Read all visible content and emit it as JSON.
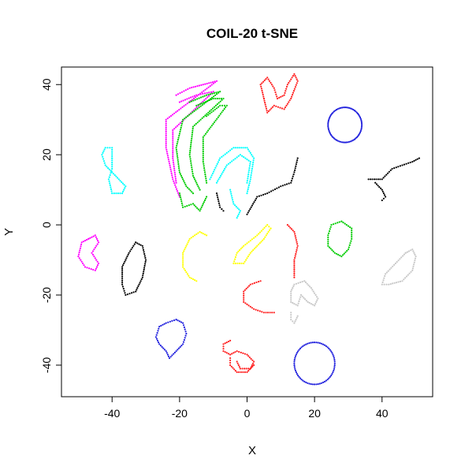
{
  "chart_data": {
    "type": "scatter",
    "title": "COIL-20 t-SNE",
    "xlabel": "X",
    "ylabel": "Y",
    "xlim": [
      -55,
      55
    ],
    "ylim": [
      -49,
      45
    ],
    "xticks": [
      -40,
      -20,
      0,
      20,
      40
    ],
    "yticks": [
      -40,
      -20,
      0,
      20,
      40
    ],
    "grid": false,
    "legend": "none",
    "marker": "small-dot",
    "series": [
      {
        "color": "#ff00ff",
        "shape": "polyline",
        "points": [
          [
            -21,
            37
          ],
          [
            -17,
            39
          ],
          [
            -13,
            40
          ],
          [
            -9,
            41
          ],
          [
            -24,
            30
          ],
          [
            -24,
            22
          ],
          [
            -22,
            13
          ],
          [
            -20,
            8
          ]
        ]
      },
      {
        "color": "#ff00ff",
        "shape": "polyline",
        "points": [
          [
            -20,
            35
          ],
          [
            -15,
            37
          ],
          [
            -10,
            38
          ],
          [
            -22,
            27
          ],
          [
            -22,
            19
          ],
          [
            -21,
            12
          ]
        ]
      },
      {
        "color": "#00cc00",
        "shape": "polyline",
        "points": [
          [
            -17,
            35
          ],
          [
            -12,
            37
          ],
          [
            -8,
            38
          ],
          [
            -19,
            30
          ],
          [
            -21,
            22
          ],
          [
            -20,
            15
          ],
          [
            -18,
            11
          ],
          [
            -16,
            9
          ]
        ]
      },
      {
        "color": "#00cc00",
        "shape": "polyline",
        "points": [
          [
            -15,
            34
          ],
          [
            -10,
            36
          ],
          [
            -7,
            36
          ],
          [
            -16,
            28
          ],
          [
            -17,
            20
          ],
          [
            -16,
            14
          ],
          [
            -14,
            10
          ]
        ]
      },
      {
        "color": "#00cc00",
        "shape": "polyline",
        "points": [
          [
            -12,
            31
          ],
          [
            -8,
            34
          ],
          [
            -6,
            34
          ],
          [
            -13,
            25
          ],
          [
            -13,
            18
          ],
          [
            -12,
            12
          ]
        ]
      },
      {
        "color": "#00cc00",
        "shape": "polyline",
        "points": [
          [
            -20,
            9
          ],
          [
            -19,
            5
          ],
          [
            -16,
            6
          ],
          [
            -14,
            4
          ],
          [
            -12,
            8
          ]
        ]
      },
      {
        "color": "#00ffff",
        "shape": "polyline",
        "points": [
          [
            -11,
            13
          ],
          [
            -8,
            19
          ],
          [
            -4,
            22
          ],
          [
            0,
            22
          ],
          [
            2,
            19
          ],
          [
            1,
            13
          ],
          [
            0,
            9
          ]
        ]
      },
      {
        "color": "#00ffff",
        "shape": "polyline",
        "points": [
          [
            -9,
            12
          ],
          [
            -6,
            17
          ],
          [
            -2,
            20
          ],
          [
            1,
            18
          ],
          [
            0,
            12
          ]
        ]
      },
      {
        "color": "#00ffff",
        "shape": "polyline",
        "points": [
          [
            -5,
            10
          ],
          [
            -4,
            6
          ],
          [
            -2,
            4
          ],
          [
            -3,
            2
          ]
        ]
      },
      {
        "color": "#00ffff",
        "shape": "polyline",
        "points": [
          [
            -40,
            19
          ],
          [
            -40,
            22
          ],
          [
            -42,
            22
          ],
          [
            -43,
            20
          ],
          [
            -42,
            17
          ],
          [
            -40,
            15
          ],
          [
            -38,
            13
          ],
          [
            -36,
            11
          ],
          [
            -37,
            9
          ],
          [
            -40,
            9
          ],
          [
            -41,
            13
          ],
          [
            -40,
            16
          ],
          [
            -40,
            19
          ]
        ]
      },
      {
        "color": "#ff2020",
        "shape": "polyline",
        "points": [
          [
            5,
            36
          ],
          [
            4,
            40
          ],
          [
            6,
            42
          ],
          [
            8,
            39
          ],
          [
            9,
            36
          ],
          [
            11,
            37
          ],
          [
            12,
            40
          ],
          [
            14,
            43
          ],
          [
            15,
            41
          ],
          [
            13,
            36
          ],
          [
            11,
            33
          ],
          [
            8,
            34
          ],
          [
            6,
            32
          ],
          [
            5,
            36
          ]
        ]
      },
      {
        "color": "#2020dd",
        "shape": "ellipse",
        "cx": 29,
        "cy": 28.5,
        "rx": 5,
        "ry": 5
      },
      {
        "color": "#000000",
        "shape": "polyline",
        "points": [
          [
            0,
            3
          ],
          [
            3,
            8
          ],
          [
            6,
            9
          ],
          [
            10,
            11
          ],
          [
            13,
            12
          ],
          [
            14,
            15
          ],
          [
            15,
            19
          ]
        ]
      },
      {
        "color": "#000000",
        "shape": "polyline",
        "points": [
          [
            -9,
            9
          ],
          [
            -8,
            5
          ],
          [
            -7,
            4
          ]
        ]
      },
      {
        "color": "#000000",
        "shape": "polyline",
        "points": [
          [
            36,
            13
          ],
          [
            40,
            13
          ],
          [
            43,
            16
          ],
          [
            46,
            17
          ],
          [
            49,
            18
          ],
          [
            51,
            19
          ]
        ]
      },
      {
        "color": "#000000",
        "shape": "polyline",
        "points": [
          [
            38,
            12
          ],
          [
            40,
            10
          ],
          [
            41,
            8
          ],
          [
            40,
            7
          ]
        ]
      },
      {
        "color": "#ff00ff",
        "shape": "polyline",
        "points": [
          [
            -47,
            -4
          ],
          [
            -49,
            -5
          ],
          [
            -50,
            -9
          ],
          [
            -48,
            -12
          ],
          [
            -45,
            -13
          ],
          [
            -44,
            -11
          ],
          [
            -46,
            -8
          ],
          [
            -44,
            -5
          ],
          [
            -45,
            -3
          ],
          [
            -47,
            -4
          ]
        ]
      },
      {
        "color": "#000000",
        "shape": "polyline",
        "points": [
          [
            -33,
            -5
          ],
          [
            -31,
            -6
          ],
          [
            -30,
            -10
          ],
          [
            -31,
            -15
          ],
          [
            -33,
            -19
          ],
          [
            -36,
            -20
          ],
          [
            -37,
            -17
          ],
          [
            -37,
            -12
          ],
          [
            -35,
            -8
          ],
          [
            -33,
            -5
          ]
        ]
      },
      {
        "color": "#ffff00",
        "shape": "polyline",
        "points": [
          [
            -12,
            -3
          ],
          [
            -14,
            -2
          ],
          [
            -17,
            -4
          ],
          [
            -19,
            -8
          ],
          [
            -19,
            -12
          ],
          [
            -17,
            -15
          ],
          [
            -15,
            -16
          ]
        ]
      },
      {
        "color": "#ffff00",
        "shape": "polyline",
        "points": [
          [
            7,
            -1
          ],
          [
            6,
            0
          ],
          [
            3,
            -3
          ],
          [
            -1,
            -6
          ],
          [
            -3,
            -8
          ],
          [
            -4,
            -11
          ],
          [
            -1,
            -11
          ],
          [
            1,
            -8
          ],
          [
            3,
            -6
          ],
          [
            5,
            -4
          ],
          [
            7,
            -1
          ]
        ]
      },
      {
        "color": "#ff2020",
        "shape": "polyline",
        "points": [
          [
            12,
            0
          ],
          [
            14,
            -2
          ],
          [
            15,
            -6
          ],
          [
            14,
            -10
          ],
          [
            14,
            -15
          ]
        ]
      },
      {
        "color": "#ff2020",
        "shape": "polyline",
        "points": [
          [
            4,
            -16
          ],
          [
            1,
            -17
          ],
          [
            -1,
            -19
          ],
          [
            -1,
            -22
          ],
          [
            2,
            -24
          ],
          [
            5,
            -25
          ],
          [
            8,
            -25
          ]
        ]
      },
      {
        "color": "#00cc00",
        "shape": "polyline",
        "points": [
          [
            28,
            1
          ],
          [
            25,
            0
          ],
          [
            24,
            -3
          ],
          [
            24,
            -6
          ],
          [
            26,
            -8
          ],
          [
            28,
            -9
          ],
          [
            30,
            -7
          ],
          [
            31,
            -4
          ],
          [
            31,
            -1
          ],
          [
            28,
            1
          ]
        ]
      },
      {
        "color": "#c8c8c8",
        "shape": "polyline",
        "points": [
          [
            47,
            -8
          ],
          [
            49,
            -7
          ],
          [
            50,
            -9
          ],
          [
            49,
            -13
          ],
          [
            46,
            -16
          ],
          [
            42,
            -17
          ],
          [
            40,
            -17
          ],
          [
            41,
            -14
          ],
          [
            44,
            -11
          ],
          [
            47,
            -8
          ]
        ]
      },
      {
        "color": "#c8c8c8",
        "shape": "polyline",
        "points": [
          [
            17,
            -16
          ],
          [
            14,
            -17
          ],
          [
            13,
            -19
          ],
          [
            13,
            -22
          ],
          [
            15,
            -23
          ],
          [
            16,
            -20
          ],
          [
            18,
            -22
          ],
          [
            20,
            -23
          ],
          [
            21,
            -21
          ],
          [
            19,
            -18
          ],
          [
            17,
            -16
          ]
        ]
      },
      {
        "color": "#c8c8c8",
        "shape": "polyline",
        "points": [
          [
            13,
            -25
          ],
          [
            13,
            -27
          ],
          [
            14,
            -28
          ],
          [
            15,
            -26
          ]
        ]
      },
      {
        "color": "#2020dd",
        "shape": "polyline",
        "points": [
          [
            -21,
            -27
          ],
          [
            -19,
            -28
          ],
          [
            -18,
            -31
          ],
          [
            -19,
            -34
          ],
          [
            -21,
            -36
          ],
          [
            -23,
            -38
          ],
          [
            -24,
            -36
          ],
          [
            -26,
            -34
          ],
          [
            -27,
            -32
          ],
          [
            -26,
            -29
          ],
          [
            -24,
            -28
          ],
          [
            -21,
            -27
          ]
        ]
      },
      {
        "color": "#ff2020",
        "shape": "polyline",
        "points": [
          [
            -5,
            -33
          ],
          [
            -7,
            -34
          ],
          [
            -7,
            -36
          ],
          [
            -5,
            -37
          ],
          [
            -3,
            -36
          ],
          [
            0,
            -37
          ],
          [
            2,
            -39
          ],
          [
            1,
            -41
          ],
          [
            -2,
            -41
          ],
          [
            -3,
            -39
          ]
        ]
      },
      {
        "color": "#ff2020",
        "shape": "polyline",
        "points": [
          [
            -5,
            -38
          ],
          [
            -5,
            -40
          ],
          [
            -3,
            -42
          ],
          [
            0,
            -42
          ],
          [
            2,
            -40
          ]
        ]
      },
      {
        "color": "#2020dd",
        "shape": "ellipse",
        "cx": 20,
        "cy": -39.5,
        "rx": 6,
        "ry": 6
      }
    ]
  }
}
